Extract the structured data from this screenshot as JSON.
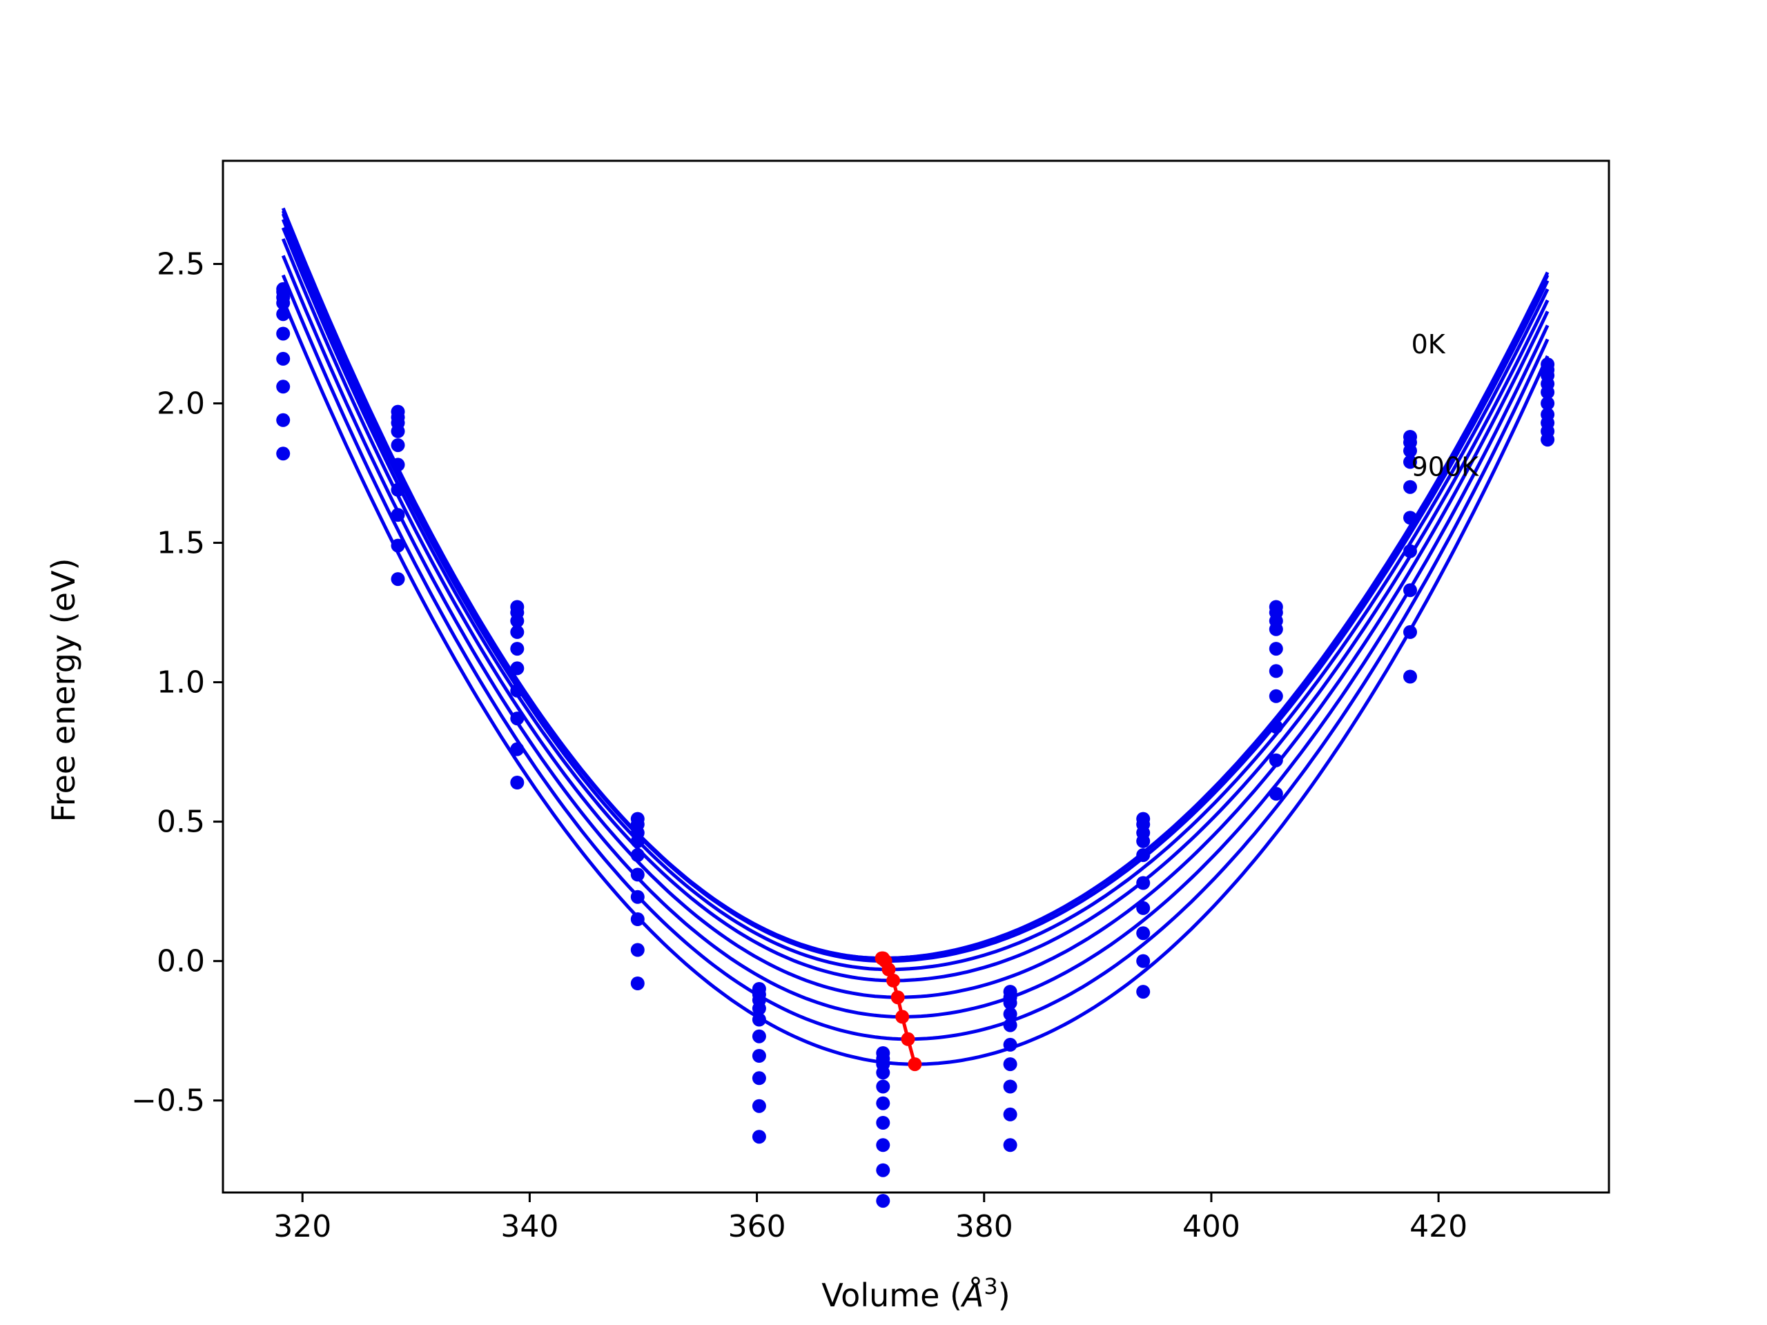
{
  "chart_data": {
    "type": "scatter",
    "title": "",
    "xlabel_prefix": "Volume (",
    "xlabel_symbol": "Å",
    "xlabel_exp": "3",
    "xlabel_suffix": ")",
    "ylabel": "Free energy (eV)",
    "xlim": [
      313,
      435
    ],
    "ylim": [
      -0.83,
      2.87
    ],
    "xticks": [
      320,
      340,
      360,
      380,
      400,
      420
    ],
    "xtick_labels": [
      "320",
      "340",
      "360",
      "380",
      "400",
      "420"
    ],
    "yticks": [
      -0.5,
      0.0,
      0.5,
      1.0,
      1.5,
      2.0,
      2.5
    ],
    "ytick_labels": [
      "−0.5",
      "0.0",
      "0.5",
      "1.0",
      "1.5",
      "2.0",
      "2.5"
    ],
    "grid": false,
    "legend": "none",
    "colors": {
      "curves": "#0000ee",
      "points": "#0000ee",
      "minima": "#ff0000"
    },
    "volumes": [
      318.3,
      328.4,
      338.9,
      349.5,
      360.2,
      371.1,
      382.3,
      394.0,
      405.7,
      417.5,
      429.6
    ],
    "fit_range": [
      318.3,
      429.6
    ],
    "points": [
      [
        2.41,
        2.4,
        2.38,
        2.36,
        2.32,
        2.25,
        2.16,
        2.06,
        1.94,
        1.82
      ],
      [
        1.97,
        1.95,
        1.93,
        1.9,
        1.85,
        1.78,
        1.69,
        1.6,
        1.49,
        1.37
      ],
      [
        1.27,
        1.25,
        1.22,
        1.18,
        1.12,
        1.05,
        0.97,
        0.87,
        0.76,
        0.64
      ],
      [
        0.51,
        0.49,
        0.46,
        0.43,
        0.38,
        0.31,
        0.23,
        0.15,
        0.04,
        -0.08
      ],
      [
        -0.1,
        -0.12,
        -0.14,
        -0.17,
        -0.21,
        -0.27,
        -0.34,
        -0.42,
        -0.52,
        -0.63
      ],
      [
        -0.33,
        -0.35,
        -0.37,
        -0.4,
        -0.45,
        -0.51,
        -0.58,
        -0.66,
        -0.75,
        -0.86
      ],
      [
        -0.11,
        -0.13,
        -0.15,
        -0.19,
        -0.23,
        -0.3,
        -0.37,
        -0.45,
        -0.55,
        -0.66
      ],
      [
        0.51,
        0.49,
        0.46,
        0.43,
        0.38,
        0.28,
        0.19,
        0.1,
        0.0,
        -0.11
      ],
      [
        1.27,
        1.25,
        1.22,
        1.19,
        1.12,
        1.04,
        0.95,
        0.84,
        0.72,
        0.6
      ],
      [
        1.88,
        1.86,
        1.83,
        1.79,
        1.7,
        1.59,
        1.47,
        1.33,
        1.18,
        1.02
      ],
      [
        2.14,
        2.12,
        2.1,
        2.07,
        2.04,
        2.0,
        1.96,
        1.93,
        1.9,
        1.87
      ]
    ],
    "curves": [
      {
        "v0": 371.0,
        "e0": 0.01,
        "left": 2.7,
        "right": 2.47
      },
      {
        "v0": 371.1,
        "e0": 0.01,
        "left": 2.69,
        "right": 2.46
      },
      {
        "v0": 371.3,
        "e0": 0.0,
        "left": 2.68,
        "right": 2.44
      },
      {
        "v0": 371.6,
        "e0": -0.03,
        "left": 2.66,
        "right": 2.41
      },
      {
        "v0": 372.0,
        "e0": -0.07,
        "left": 2.63,
        "right": 2.37
      },
      {
        "v0": 372.4,
        "e0": -0.13,
        "left": 2.59,
        "right": 2.33
      },
      {
        "v0": 372.8,
        "e0": -0.2,
        "left": 2.53,
        "right": 2.28
      },
      {
        "v0": 373.3,
        "e0": -0.28,
        "left": 2.46,
        "right": 2.23
      },
      {
        "v0": 373.9,
        "e0": -0.37,
        "left": 2.37,
        "right": 2.17
      }
    ],
    "minima": [
      [
        371.0,
        0.01
      ],
      [
        371.1,
        0.01
      ],
      [
        371.3,
        0.0
      ],
      [
        371.6,
        -0.03
      ],
      [
        372.0,
        -0.07
      ],
      [
        372.4,
        -0.13
      ],
      [
        372.8,
        -0.2
      ],
      [
        373.3,
        -0.28
      ],
      [
        373.9,
        -0.37
      ]
    ],
    "annotations": [
      {
        "text": "0K",
        "x": 417.6,
        "y": 2.18
      },
      {
        "text": "900K",
        "x": 417.6,
        "y": 1.74
      }
    ]
  }
}
